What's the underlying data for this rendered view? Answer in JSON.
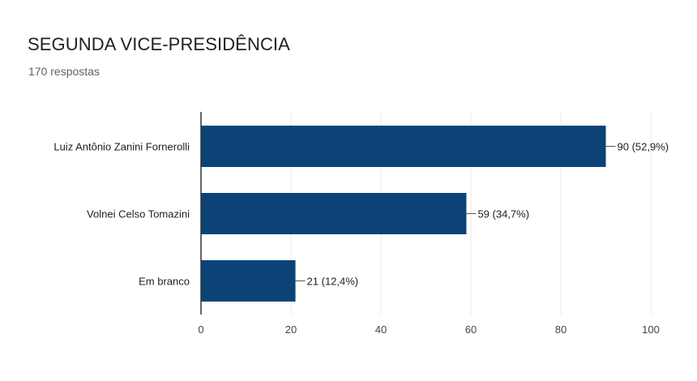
{
  "header": {
    "title": "SEGUNDA VICE-PRESIDÊNCIA",
    "subtitle": "170 respostas"
  },
  "colors": {
    "bar": "#0b4377",
    "grid": "#e8e8e8",
    "axis": "#333333"
  },
  "chart_data": {
    "type": "bar",
    "orientation": "horizontal",
    "categories": [
      "Luiz Antônio Zanini Fornerolli",
      "Volnei Celso Tomazini",
      "Em branco"
    ],
    "values": [
      90,
      59,
      21
    ],
    "data_labels": [
      "90 (52,9%)",
      "59 (34,7%)",
      "21 (12,4%)"
    ],
    "xlim": [
      0,
      100
    ],
    "xticks": [
      0,
      20,
      40,
      60,
      80,
      100
    ],
    "grid": true
  }
}
